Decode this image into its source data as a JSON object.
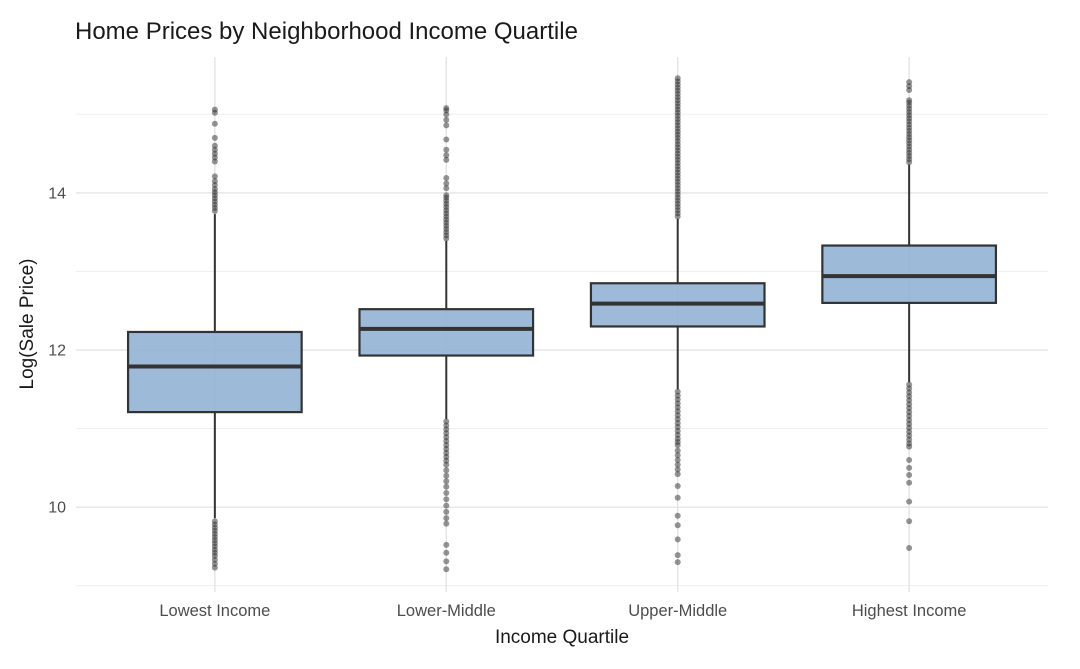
{
  "chart_data": {
    "type": "boxplot",
    "title": "Home Prices by Neighborhood Income Quartile",
    "xlabel": "Income Quartile",
    "ylabel": "Log(Sale Price)",
    "categories": [
      "Lowest Income",
      "Lower-Middle",
      "Upper-Middle",
      "Highest Income"
    ],
    "y_major_ticks": [
      10,
      12,
      14
    ],
    "y_minor_ticks": [
      9,
      11,
      13,
      15
    ],
    "ylim": [
      8.92,
      15.73
    ],
    "grid": true,
    "legend": false,
    "colors": {
      "box_fill": "#8FB2D3",
      "box_stroke": "#333333",
      "outlier": "#2B2B2B",
      "grid_major": "#E4E4E4",
      "grid_minor": "#F0F0F0",
      "axis_text": "#4D4D4D",
      "title_text": "#1A1A1A"
    },
    "boxes": [
      {
        "category": "Lowest Income",
        "whisker_low": 9.86,
        "q1": 11.21,
        "median": 11.79,
        "q3": 12.23,
        "whisker_high": 13.73,
        "outliers_high": [
          13.77,
          13.81,
          13.85,
          13.89,
          13.93,
          13.97,
          14.01,
          14.05,
          14.1,
          14.15,
          14.21,
          14.4,
          14.45,
          14.5,
          14.55,
          14.6,
          14.7,
          14.88,
          15.02,
          15.06
        ],
        "outliers_low": [
          9.82,
          9.78,
          9.74,
          9.7,
          9.66,
          9.62,
          9.58,
          9.54,
          9.5,
          9.46,
          9.42,
          9.38,
          9.33,
          9.28,
          9.23
        ]
      },
      {
        "category": "Lower-Middle",
        "whisker_low": 11.12,
        "q1": 11.93,
        "median": 12.27,
        "q3": 12.52,
        "whisker_high": 13.39,
        "outliers_high": [
          13.42,
          13.46,
          13.5,
          13.54,
          13.58,
          13.62,
          13.66,
          13.7,
          13.74,
          13.78,
          13.82,
          13.86,
          13.9,
          13.94,
          13.97,
          14.06,
          14.12,
          14.19,
          14.42,
          14.48,
          14.55,
          14.68,
          14.86,
          14.93,
          15.0,
          15.05,
          15.08
        ],
        "outliers_low": [
          11.09,
          11.04,
          10.99,
          10.94,
          10.89,
          10.84,
          10.79,
          10.74,
          10.69,
          10.64,
          10.59,
          10.54,
          10.47,
          10.4,
          10.33,
          10.26,
          10.18,
          10.1,
          10.02,
          9.94,
          9.86,
          9.79,
          9.52,
          9.42,
          9.31,
          9.21
        ]
      },
      {
        "category": "Upper-Middle",
        "whisker_low": 11.5,
        "q1": 12.3,
        "median": 12.59,
        "q3": 12.85,
        "whisker_high": 13.67,
        "outliers_high": [
          13.7,
          13.74,
          13.78,
          13.82,
          13.86,
          13.9,
          13.94,
          13.98,
          14.02,
          14.06,
          14.1,
          14.14,
          14.18,
          14.22,
          14.26,
          14.3,
          14.34,
          14.38,
          14.42,
          14.46,
          14.5,
          14.54,
          14.58,
          14.62,
          14.66,
          14.7,
          14.74,
          14.78,
          14.82,
          14.86,
          14.9,
          14.94,
          14.98,
          15.02,
          15.06,
          15.1,
          15.14,
          15.18,
          15.22,
          15.26,
          15.3,
          15.34,
          15.38,
          15.42,
          15.46
        ],
        "outliers_low": [
          11.47,
          11.42,
          11.37,
          11.32,
          11.27,
          11.22,
          11.17,
          11.12,
          11.07,
          11.02,
          10.97,
          10.92,
          10.87,
          10.83,
          10.79,
          10.72,
          10.66,
          10.6,
          10.54,
          10.48,
          10.42,
          10.27,
          10.12,
          9.89,
          9.77,
          9.59,
          9.39,
          9.3
        ]
      },
      {
        "category": "Highest Income",
        "whisker_low": 11.59,
        "q1": 12.6,
        "median": 12.94,
        "q3": 13.33,
        "whisker_high": 14.36,
        "outliers_high": [
          14.39,
          14.43,
          14.47,
          14.51,
          14.55,
          14.59,
          14.63,
          14.67,
          14.71,
          14.75,
          14.79,
          14.83,
          14.87,
          14.91,
          14.95,
          14.99,
          15.03,
          15.07,
          15.11,
          15.15,
          15.18,
          15.31,
          15.36,
          15.41
        ],
        "outliers_low": [
          11.56,
          11.51,
          11.46,
          11.41,
          11.36,
          11.31,
          11.26,
          11.21,
          11.16,
          11.11,
          11.06,
          11.01,
          10.96,
          10.91,
          10.86,
          10.81,
          10.77,
          10.6,
          10.5,
          10.41,
          10.31,
          10.07,
          9.82,
          9.48
        ]
      }
    ]
  }
}
